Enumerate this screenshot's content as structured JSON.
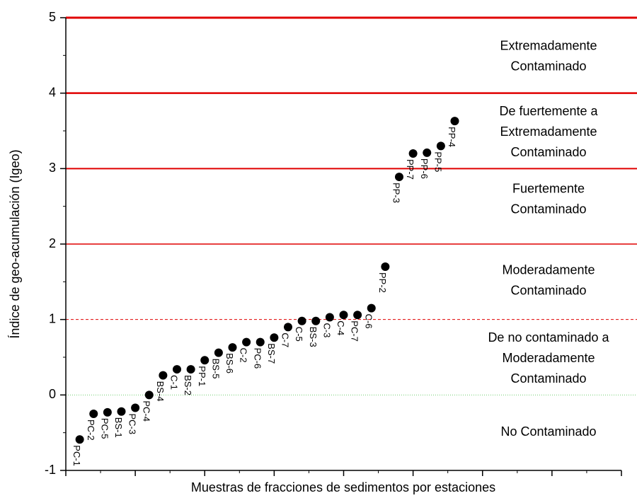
{
  "chart_data": {
    "type": "scatter",
    "y_label": "Índice de geo-acumulación (Igeo)",
    "x_label": "Muestras de fracciones de sedimentos por estaciones",
    "x": [
      1,
      2,
      3,
      4,
      5,
      6,
      7,
      8,
      9,
      10,
      11,
      12,
      13,
      14,
      15,
      16,
      17,
      18,
      19,
      20,
      21,
      22,
      23,
      24,
      25,
      26,
      27,
      28
    ],
    "point_labels": [
      "PC-1",
      "PC-2",
      "PC-5",
      "BS-1",
      "PC-3",
      "PC-4",
      "BS-4",
      "C-1",
      "BS-2",
      "PP-1",
      "BS-5",
      "BS-6",
      "C-2",
      "PC-6",
      "BS-7",
      "C-7",
      "C-5",
      "BS-3",
      "C-3",
      "C-4",
      "PC-7",
      "C-6",
      "PP-2",
      "PP-3",
      "PP-7",
      "PP-6",
      "PP-5",
      "PP-4"
    ],
    "values": [
      -0.59,
      -0.25,
      -0.23,
      -0.22,
      -0.17,
      0.0,
      0.26,
      0.34,
      0.34,
      0.46,
      0.56,
      0.63,
      0.7,
      0.7,
      0.76,
      0.9,
      0.98,
      0.98,
      1.03,
      1.06,
      1.06,
      1.15,
      1.7,
      2.89,
      3.2,
      3.21,
      3.3,
      3.63
    ],
    "color": "#000000",
    "xlim": [
      0,
      40
    ],
    "xticks": [
      0,
      5,
      10,
      15,
      20,
      25,
      30,
      35,
      40
    ],
    "ylim": [
      -1,
      5
    ],
    "yticks": [
      -1,
      0,
      1,
      2,
      3,
      4,
      5
    ],
    "hlines": [
      {
        "value": 5,
        "color": "#e00000",
        "style": "solid",
        "width": 3
      },
      {
        "value": 4,
        "color": "#e00000",
        "style": "solid",
        "width": 2.5
      },
      {
        "value": 3,
        "color": "#e00000",
        "style": "solid",
        "width": 2
      },
      {
        "value": 2,
        "color": "#e00000",
        "style": "solid",
        "width": 1.5
      },
      {
        "value": 1,
        "color": "#e00000",
        "style": "dashed",
        "width": 1
      },
      {
        "value": 0,
        "color": "#6fcf6f",
        "style": "dotted",
        "width": 1
      }
    ],
    "zones": [
      [
        "Extremadamente",
        "Contaminado"
      ],
      [
        "De fuertemente a",
        "Extremadamente",
        "Contaminado"
      ],
      [
        "Fuertemente",
        "Contaminado"
      ],
      [
        "Moderadamente",
        "Contaminado"
      ],
      [
        "De no contaminado a",
        "Moderadamente",
        "Contaminado"
      ],
      [
        "No Contaminado"
      ]
    ]
  }
}
